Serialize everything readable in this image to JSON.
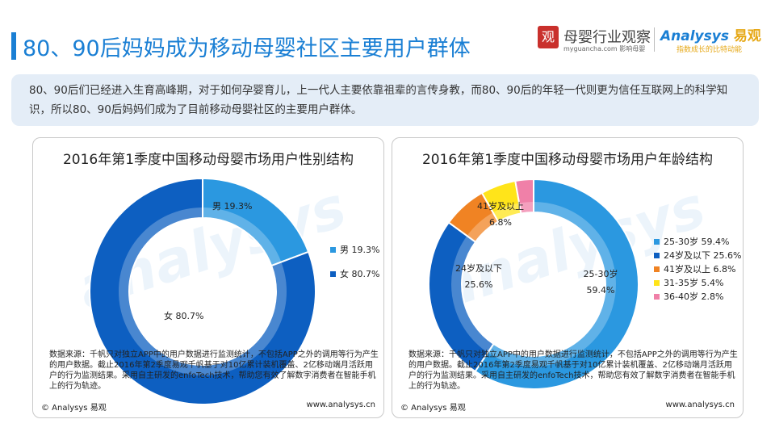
{
  "header": {
    "title": "80、90后妈妈成为移动母婴社区主要用户群体"
  },
  "logos": {
    "partner_seal": "观",
    "partner_name": "母婴行业观察",
    "partner_domain": "myguancha.com 影响母婴",
    "brand_name": "Analysys",
    "brand_cn": "易观",
    "brand_slogan": "指数成长的比特动能"
  },
  "intro": {
    "text": "80、90后们已经进入生育高峰期，对于如何孕婴育儿，上一代人主要依靠祖辈的言传身教，而80、90后的年轻一代则更为信任互联网上的科学知识，所以80、90后妈妈们成为了目前移动母婴社区的主要用户群体。"
  },
  "panels": {
    "left": {
      "watermark": "analysys",
      "source": "数据来源：千帆只对独立APP中的用户数据进行监测统计，不包括APP之外的调用等行为产生的用户数据。截止2016年第2季度易观千帆基于对10亿累计装机覆盖、2亿移动端月活跃用户的行为监测结果。采用自主研发的enfoTech技术，帮助您有效了解数字消费者在智能手机上的行为轨迹。",
      "copyright": "© Analysys 易观",
      "site": "www.analysys.cn"
    },
    "right": {
      "watermark": "analysys",
      "source": "数据来源：千帆只对独立APP中的用户数据进行监测统计，不包括APP之外的调用等行为产生的用户数据。截止2016年第2季度易观千帆基于对10亿累计装机覆盖、2亿移动端月活跃用户的行为监测结果。采用自主研发的enfoTech技术，帮助您有效了解数字消费者在智能手机上的行为轨迹。",
      "copyright": "© Analysys 易观",
      "site": "www.analysys.cn"
    }
  },
  "chart_data": [
    {
      "type": "pie",
      "title": "2016年第1季度中国移动母婴市场用户性别结构",
      "donut": true,
      "legend_position": "right",
      "slices": [
        {
          "name": "男",
          "value": 19.3,
          "label": "19.3%",
          "color": "#2b98e0"
        },
        {
          "name": "女",
          "value": 80.7,
          "label": "80.7%",
          "color": "#0d5fc1"
        }
      ]
    },
    {
      "type": "pie",
      "title": "2016年第1季度中国移动母婴市场用户年龄结构",
      "donut": true,
      "legend_position": "right",
      "slices": [
        {
          "name": "25-30岁",
          "value": 59.4,
          "label": "59.4%",
          "color": "#2b98e0"
        },
        {
          "name": "24岁及以下",
          "value": 25.6,
          "label": "25.6%",
          "color": "#0d5fc1"
        },
        {
          "name": "41岁及以上",
          "value": 6.8,
          "label": "6.8%",
          "color": "#f08323"
        },
        {
          "name": "31-35岁",
          "value": 5.4,
          "label": "5.4%",
          "color": "#ffe41a"
        },
        {
          "name": "36-40岁",
          "value": 2.8,
          "label": "2.8%",
          "color": "#f080a8"
        }
      ]
    }
  ]
}
